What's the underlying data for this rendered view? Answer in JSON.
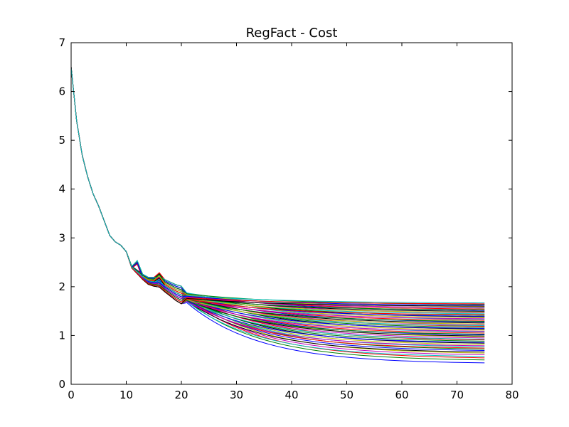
{
  "chart_data": {
    "type": "line",
    "title": "RegFact - Cost",
    "xlabel": "",
    "ylabel": "",
    "xlim": [
      0,
      80
    ],
    "ylim": [
      0,
      7
    ],
    "xticks": [
      "0",
      "10",
      "20",
      "30",
      "40",
      "50",
      "60",
      "70",
      "80"
    ],
    "yticks": [
      "0",
      "1",
      "2",
      "3",
      "4",
      "5",
      "6",
      "7"
    ],
    "grid": false,
    "legend": "none",
    "x_max_data": 75,
    "series_count": 60,
    "series_colors": [
      "#0000ff",
      "#008000",
      "#ff0000",
      "#00bfbf",
      "#bf00bf",
      "#bfbf00",
      "#000000"
    ],
    "common_curve": {
      "x": [
        0,
        1,
        2,
        3,
        4,
        5,
        6,
        7,
        8,
        9,
        10,
        11,
        12,
        13,
        14,
        15,
        16,
        17,
        18,
        19,
        20
      ],
      "y": [
        6.5,
        5.4,
        4.7,
        4.25,
        3.9,
        3.65,
        3.35,
        3.05,
        2.92,
        2.85,
        2.72,
        2.4,
        2.3,
        2.2,
        2.12,
        2.1,
        2.1,
        2.02,
        1.95,
        1.88,
        1.83
      ]
    },
    "final_values_at_x75": {
      "min": 0.42,
      "max": 1.66
    }
  }
}
